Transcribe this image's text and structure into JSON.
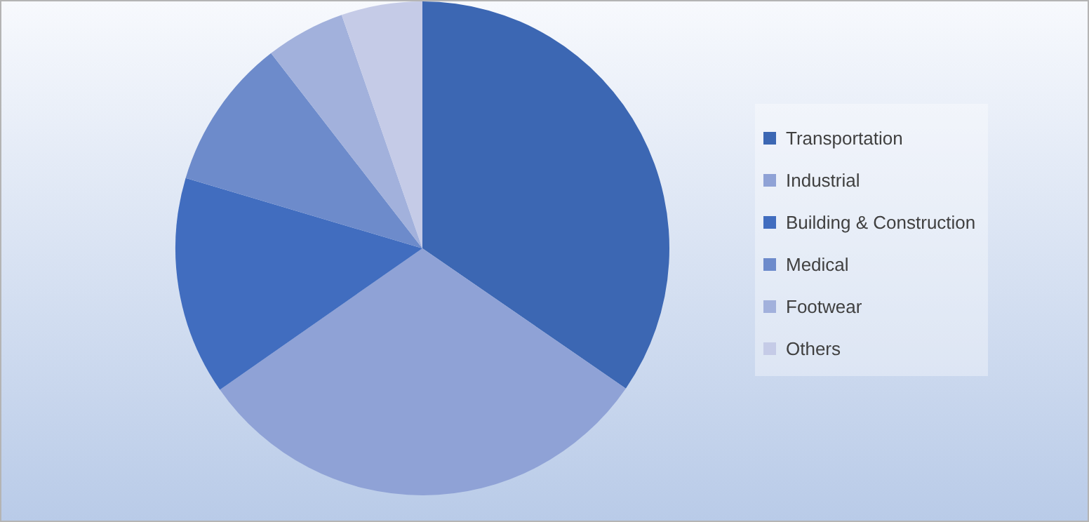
{
  "chart_data": {
    "type": "pie",
    "categories": [
      "Transportation",
      "Industrial",
      "Building & Construction",
      "Medical",
      "Footwear",
      "Others"
    ],
    "values": [
      34.6,
      30.7,
      14.3,
      9.9,
      5.2,
      5.3
    ],
    "colors": [
      "#3c67b3",
      "#8fa2d6",
      "#416dbf",
      "#6d8bcb",
      "#a2b1dc",
      "#c5cbe7"
    ],
    "legend": "right"
  }
}
